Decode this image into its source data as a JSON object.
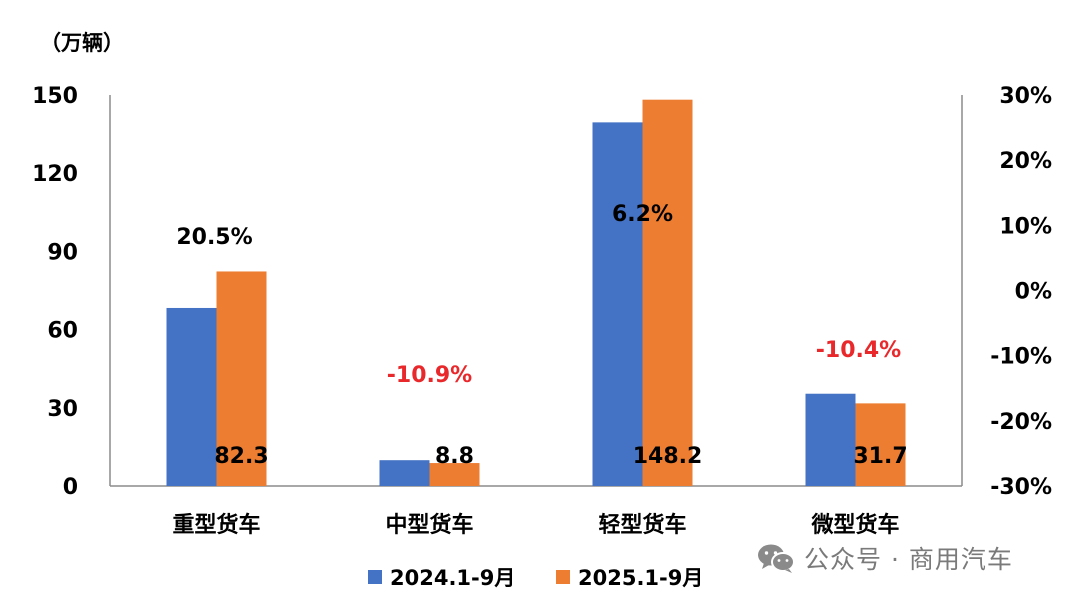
{
  "chart_data": {
    "type": "bar",
    "unit_label": "（万辆）",
    "categories": [
      "重型货车",
      "中型货车",
      "轻型货车",
      "微型货车"
    ],
    "series": [
      {
        "name": "2024.1-9月",
        "color": "#4472C4",
        "values": [
          68.3,
          9.9,
          139.5,
          35.4
        ]
      },
      {
        "name": "2025.1-9月",
        "color": "#ED7D31",
        "values": [
          82.3,
          8.8,
          148.2,
          31.7
        ]
      }
    ],
    "value_labels": [
      "82.3",
      "8.8",
      "148.2",
      "31.7"
    ],
    "growth_labels": [
      {
        "text": "20.5%",
        "color": "#000000"
      },
      {
        "text": "-10.9%",
        "color": "#E8282B"
      },
      {
        "text": "6.2%",
        "color": "#000000"
      },
      {
        "text": "-10.4%",
        "color": "#E8282B"
      }
    ],
    "y_left": {
      "min": 0,
      "max": 150,
      "ticks": [
        "0",
        "30",
        "60",
        "90",
        "120",
        "150"
      ]
    },
    "y_right": {
      "min": -30,
      "max": 30,
      "ticks": [
        "-30%",
        "-20%",
        "-10%",
        "0%",
        "10%",
        "20%",
        "30%"
      ]
    },
    "legend_position": "bottom-center",
    "grid": false
  },
  "watermark": {
    "icon": "wechat-icon",
    "text": "公众号 · 商用汽车"
  }
}
